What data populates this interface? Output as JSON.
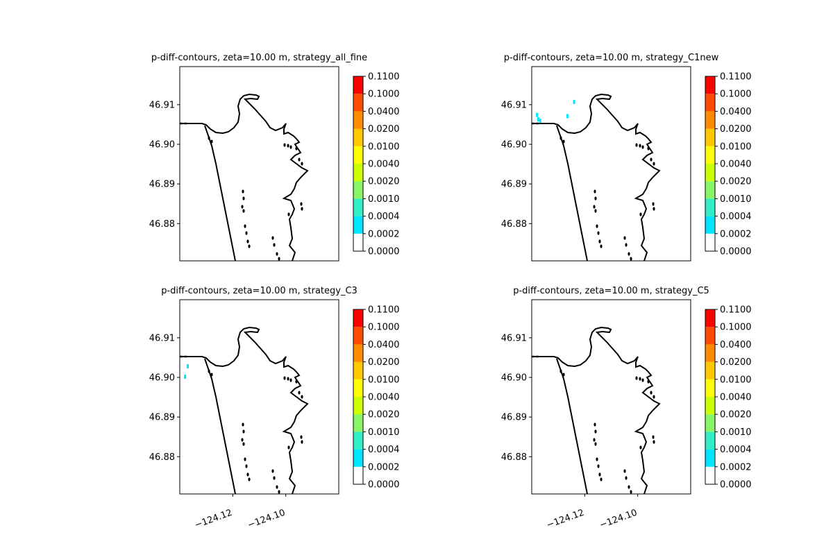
{
  "chart_data": {
    "type": "contour_map",
    "panels": [
      {
        "title": "p-diff-contours, zeta=10.00 m, strategy_all_fine",
        "highlights": []
      },
      {
        "title": "p-diff-contours, zeta=10.00 m, strategy_C1new",
        "highlights": [
          {
            "lon": -124.1375,
            "lat": 46.9063
          },
          {
            "lon": -124.1368,
            "lat": 46.9059
          },
          {
            "lon": -124.138,
            "lat": 46.9074
          },
          {
            "lon": -124.1265,
            "lat": 46.9071
          },
          {
            "lon": -124.124,
            "lat": 46.9107
          }
        ]
      },
      {
        "title": "p-diff-contours, zeta=10.00 m, strategy_C3",
        "highlights": [
          {
            "lon": -124.137,
            "lat": 46.9028
          },
          {
            "lon": -124.138,
            "lat": 46.9002
          }
        ]
      },
      {
        "title": "p-diff-contours, zeta=10.00 m, strategy_C5",
        "highlights": []
      }
    ],
    "xlim": [
      -124.14,
      -124.08
    ],
    "ylim": [
      46.8706,
      46.9196
    ],
    "x_ticks": [
      -124.12,
      -124.1
    ],
    "x_tick_labels": [
      "−124.12",
      "−124.10"
    ],
    "y_ticks": [
      46.88,
      46.89,
      46.9,
      46.91
    ],
    "y_tick_labels": [
      "46.88",
      "46.89",
      "46.90",
      "46.91"
    ],
    "colorbar": {
      "levels": [
        "0.0000",
        "0.0002",
        "0.0004",
        "0.0010",
        "0.0020",
        "0.0040",
        "0.0100",
        "0.0200",
        "0.0400",
        "0.1000",
        "0.1100"
      ],
      "colors": [
        "#ffffff",
        "#00e5ff",
        "#33eec4",
        "#88f566",
        "#ccff00",
        "#ffff00",
        "#ffc800",
        "#ff8c00",
        "#ff4a00",
        "#ff0000"
      ]
    },
    "highlight_color": "#00e5ff",
    "coastline_color": "#000000"
  }
}
